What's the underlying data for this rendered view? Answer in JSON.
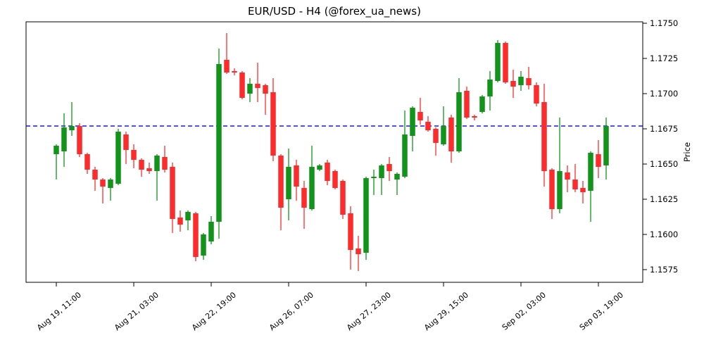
{
  "figure": {
    "background": "#ffffff",
    "frame_color": "#000000"
  },
  "chart_data": {
    "type": "candlestick",
    "title": "EUR/USD - H4 (@forex_ua_news)",
    "symbol": "EUR/USD",
    "timeframe": "H4",
    "source_handle": "@forex_ua_news",
    "xlabel": "",
    "ylabel": "Price",
    "ylim": [
      1.1566,
      1.1751
    ],
    "grid": false,
    "y_ticks": [
      1.1575,
      1.16,
      1.1625,
      1.165,
      1.1675,
      1.17,
      1.1725,
      1.175
    ],
    "y_tick_labels": [
      "1.1575",
      "1.1600",
      "1.1625",
      "1.1650",
      "1.1675",
      "1.1700",
      "1.1725",
      "1.1750"
    ],
    "x_ticks": [
      {
        "index": 0,
        "label": "Aug 19, 11:00"
      },
      {
        "index": 10,
        "label": "Aug 21, 03:00"
      },
      {
        "index": 20,
        "label": "Aug 22, 19:00"
      },
      {
        "index": 30,
        "label": "Aug 26, 07:00"
      },
      {
        "index": 40,
        "label": "Aug 27, 23:00"
      },
      {
        "index": 50,
        "label": "Aug 29, 15:00"
      },
      {
        "index": 60,
        "label": "Sep 02, 03:00"
      },
      {
        "index": 70,
        "label": "Sep 03, 19:00"
      }
    ],
    "hline": {
      "level": 1.1677,
      "color": "#1515ee",
      "style": "dashed"
    },
    "colors": {
      "up": "#119419",
      "down": "#fd2c2c"
    },
    "candle_format": [
      "open",
      "high",
      "low",
      "close"
    ],
    "candles": [
      [
        1.1657,
        1.1664,
        1.1639,
        1.1663
      ],
      [
        1.1659,
        1.1686,
        1.1648,
        1.1676
      ],
      [
        1.1674,
        1.1694,
        1.167,
        1.1677
      ],
      [
        1.1677,
        1.1679,
        1.1655,
        1.1657
      ],
      [
        1.1657,
        1.1658,
        1.1643,
        1.1646
      ],
      [
        1.1646,
        1.1648,
        1.1631,
        1.1639
      ],
      [
        1.1639,
        1.164,
        1.1622,
        1.1634
      ],
      [
        1.1633,
        1.164,
        1.1624,
        1.1639
      ],
      [
        1.1636,
        1.1675,
        1.1635,
        1.1673
      ],
      [
        1.1671,
        1.1673,
        1.165,
        1.166
      ],
      [
        1.166,
        1.1664,
        1.1647,
        1.1653
      ],
      [
        1.1653,
        1.1654,
        1.1641,
        1.1646
      ],
      [
        1.1647,
        1.1651,
        1.1643,
        1.1645
      ],
      [
        1.1645,
        1.1657,
        1.1624,
        1.1656
      ],
      [
        1.1655,
        1.1663,
        1.1644,
        1.1646
      ],
      [
        1.1648,
        1.1651,
        1.1601,
        1.1611
      ],
      [
        1.1612,
        1.1617,
        1.1602,
        1.1607
      ],
      [
        1.161,
        1.1617,
        1.1603,
        1.1616
      ],
      [
        1.1615,
        1.1616,
        1.1581,
        1.1584
      ],
      [
        1.1585,
        1.1601,
        1.1582,
        1.16
      ],
      [
        1.1595,
        1.1613,
        1.1593,
        1.1609
      ],
      [
        1.1609,
        1.1732,
        1.1597,
        1.1721
      ],
      [
        1.1724,
        1.1743,
        1.1714,
        1.1715
      ],
      [
        1.1716,
        1.1718,
        1.1713,
        1.1715
      ],
      [
        1.1715,
        1.1716,
        1.1696,
        1.1697
      ],
      [
        1.17,
        1.1711,
        1.1694,
        1.1707
      ],
      [
        1.1707,
        1.1722,
        1.1694,
        1.1704
      ],
      [
        1.1706,
        1.1707,
        1.1685,
        1.17
      ],
      [
        1.1701,
        1.1711,
        1.1652,
        1.1656
      ],
      [
        1.1656,
        1.1657,
        1.1603,
        1.1619
      ],
      [
        1.1625,
        1.1661,
        1.161,
        1.1648
      ],
      [
        1.1649,
        1.1653,
        1.1624,
        1.1634
      ],
      [
        1.1633,
        1.1638,
        1.1604,
        1.1619
      ],
      [
        1.1618,
        1.1663,
        1.1617,
        1.1648
      ],
      [
        1.1646,
        1.165,
        1.1645,
        1.1649
      ],
      [
        1.1651,
        1.1653,
        1.1635,
        1.1638
      ],
      [
        1.1645,
        1.1646,
        1.1632,
        1.1633
      ],
      [
        1.1638,
        1.1639,
        1.1611,
        1.1614
      ],
      [
        1.1615,
        1.162,
        1.1575,
        1.1589
      ],
      [
        1.159,
        1.1599,
        1.1574,
        1.1586
      ],
      [
        1.1587,
        1.1641,
        1.1582,
        1.164
      ],
      [
        1.164,
        1.1646,
        1.1628,
        1.1641
      ],
      [
        1.164,
        1.165,
        1.1628,
        1.1649
      ],
      [
        1.165,
        1.1655,
        1.1638,
        1.1645
      ],
      [
        1.1639,
        1.1644,
        1.1628,
        1.1643
      ],
      [
        1.1641,
        1.1688,
        1.164,
        1.1671
      ],
      [
        1.167,
        1.1691,
        1.1659,
        1.169
      ],
      [
        1.1687,
        1.1697,
        1.1678,
        1.1681
      ],
      [
        1.168,
        1.1684,
        1.1673,
        1.1674
      ],
      [
        1.1675,
        1.1676,
        1.1656,
        1.1665
      ],
      [
        1.1664,
        1.1691,
        1.1663,
        1.1677
      ],
      [
        1.1683,
        1.1685,
        1.1651,
        1.1659
      ],
      [
        1.1659,
        1.1711,
        1.1658,
        1.1701
      ],
      [
        1.1702,
        1.1705,
        1.1682,
        1.1683
      ],
      [
        1.1684,
        1.1685,
        1.1681,
        1.1683
      ],
      [
        1.1687,
        1.1699,
        1.1686,
        1.1698
      ],
      [
        1.1698,
        1.1716,
        1.1688,
        1.171
      ],
      [
        1.1709,
        1.1738,
        1.1708,
        1.1736
      ],
      [
        1.1736,
        1.1737,
        1.1707,
        1.1708
      ],
      [
        1.1709,
        1.1717,
        1.1697,
        1.1705
      ],
      [
        1.1706,
        1.1716,
        1.1702,
        1.1712
      ],
      [
        1.1711,
        1.1719,
        1.1703,
        1.1706
      ],
      [
        1.1706,
        1.1708,
        1.1691,
        1.1693
      ],
      [
        1.1694,
        1.1707,
        1.1634,
        1.1645
      ],
      [
        1.1646,
        1.1647,
        1.1611,
        1.1618
      ],
      [
        1.1618,
        1.1683,
        1.1615,
        1.1645
      ],
      [
        1.1644,
        1.1649,
        1.163,
        1.1639
      ],
      [
        1.1639,
        1.165,
        1.163,
        1.1632
      ],
      [
        1.1633,
        1.1638,
        1.1622,
        1.163
      ],
      [
        1.1631,
        1.1659,
        1.1609,
        1.1658
      ],
      [
        1.1657,
        1.1667,
        1.164,
        1.1648
      ],
      [
        1.1649,
        1.1683,
        1.1639,
        1.1677
      ]
    ]
  }
}
